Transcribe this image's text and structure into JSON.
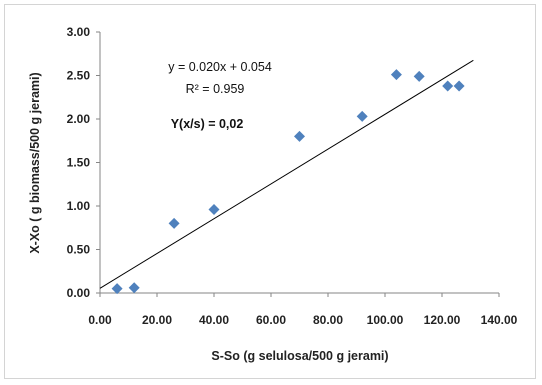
{
  "chart_data": {
    "type": "scatter",
    "title": "",
    "xlabel": "S-So (g selulosa/500 g  jerami)",
    "ylabel": "X-Xo ( g biomass/500 g jerami)",
    "xlim": [
      0,
      140
    ],
    "ylim": [
      0,
      3
    ],
    "x_ticks": [
      "0.00",
      "20.00",
      "40.00",
      "60.00",
      "80.00",
      "100.00",
      "120.00",
      "140.00"
    ],
    "y_ticks": [
      "0.00",
      "0.50",
      "1.00",
      "1.50",
      "2.00",
      "2.50",
      "3.00"
    ],
    "grid": false,
    "series": [
      {
        "marker": "diamond",
        "color": "#4f81bd",
        "points": [
          {
            "x": 6,
            "y": 0.05
          },
          {
            "x": 12,
            "y": 0.06
          },
          {
            "x": 26,
            "y": 0.8
          },
          {
            "x": 40,
            "y": 0.96
          },
          {
            "x": 70,
            "y": 1.8
          },
          {
            "x": 92,
            "y": 2.03
          },
          {
            "x": 104,
            "y": 2.51
          },
          {
            "x": 112,
            "y": 2.49
          },
          {
            "x": 122,
            "y": 2.38
          },
          {
            "x": 126,
            "y": 2.38
          }
        ]
      }
    ],
    "trendline": {
      "type": "linear",
      "slope": 0.02,
      "intercept": 0.054,
      "x_range": [
        0,
        131
      ],
      "color": "#000000"
    },
    "annotations": {
      "equation": "y = 0.020x + 0.054",
      "r2": "R² = 0.959",
      "yield": "Y(x/s) = 0,02"
    }
  }
}
